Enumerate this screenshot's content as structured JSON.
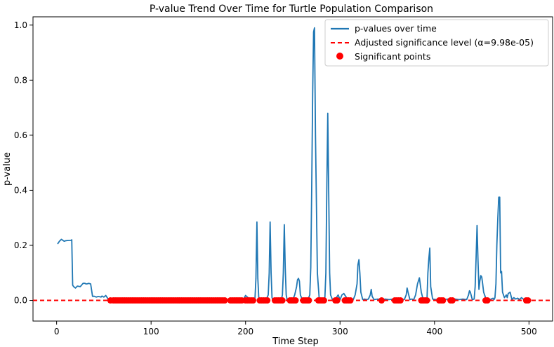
{
  "chart_data": {
    "type": "line",
    "title": "P-value Trend Over Time for Turtle Population Comparison",
    "xlabel": "Time Step",
    "ylabel": "p-value",
    "xlim": [
      -25,
      525
    ],
    "ylim": [
      -0.075,
      1.03
    ],
    "xticks": [
      0,
      100,
      200,
      300,
      400,
      500
    ],
    "yticks": [
      0.0,
      0.2,
      0.4,
      0.6,
      0.8,
      1.0
    ],
    "xtick_labels": [
      "0",
      "100",
      "200",
      "300",
      "400",
      "500"
    ],
    "ytick_labels": [
      "0.0",
      "0.2",
      "0.4",
      "0.6",
      "0.8",
      "1.0"
    ],
    "grid": false,
    "legend_position": "top-right",
    "colors": {
      "line": "#1f77b4",
      "threshold": "#ff0000",
      "points": "#ff0000"
    },
    "threshold": 9.98e-05,
    "series": [
      {
        "name": "p-values over time",
        "kind": "line",
        "x": [
          1,
          3,
          5,
          8,
          10,
          13,
          15,
          16,
          17,
          18,
          20,
          22,
          25,
          28,
          30,
          31,
          32,
          34,
          36,
          38,
          40,
          42,
          44,
          46,
          47,
          48,
          50,
          52,
          55,
          58,
          60,
          80,
          100,
          120,
          140,
          160,
          180,
          185,
          188,
          190,
          192,
          195,
          198,
          200,
          205,
          209,
          210,
          211,
          212,
          213,
          214,
          218,
          222,
          224,
          225,
          226,
          227,
          228,
          229,
          232,
          236,
          238,
          239,
          240,
          241,
          242,
          243,
          244,
          248,
          250,
          252,
          254,
          255,
          256,
          257,
          258,
          260,
          262,
          266,
          268,
          269,
          270,
          271,
          272,
          273,
          274,
          276,
          278,
          280,
          282,
          284,
          285,
          286,
          287,
          288,
          289,
          290,
          292,
          294,
          296,
          298,
          300,
          302,
          304,
          306,
          308,
          310,
          312,
          314,
          316,
          318,
          319,
          320,
          321,
          322,
          324,
          326,
          328,
          330,
          332,
          333,
          334,
          336,
          340,
          344,
          348,
          352,
          356,
          360,
          364,
          368,
          370,
          371,
          372,
          374,
          376,
          378,
          380,
          382,
          384,
          386,
          388,
          390,
          392,
          393,
          394,
          395,
          396,
          398,
          402,
          406,
          410,
          414,
          418,
          422,
          426,
          430,
          434,
          436,
          437,
          438,
          440,
          442,
          443,
          444,
          445,
          446,
          447,
          448,
          449,
          450,
          451,
          452,
          454,
          456,
          458,
          460,
          462,
          463,
          464,
          465,
          466,
          467,
          468,
          469,
          470,
          471,
          472,
          474,
          476,
          477,
          478,
          480,
          482,
          484,
          486,
          488,
          490,
          492,
          494,
          496,
          498
        ],
        "y": [
          0.205,
          0.215,
          0.222,
          0.215,
          0.217,
          0.218,
          0.218,
          0.22,
          0.055,
          0.05,
          0.045,
          0.052,
          0.05,
          0.062,
          0.062,
          0.06,
          0.06,
          0.062,
          0.06,
          0.015,
          0.015,
          0.012,
          0.014,
          0.013,
          0.012,
          0.016,
          0.012,
          0.018,
          0.003,
          0.002,
          0.001,
          0.001,
          0.001,
          0.001,
          0.001,
          0.001,
          0.001,
          0.003,
          0.003,
          0.005,
          0.003,
          0.008,
          0.005,
          0.018,
          0.003,
          0.002,
          0.01,
          0.08,
          0.285,
          0.08,
          0.005,
          0.003,
          0.005,
          0.02,
          0.1,
          0.285,
          0.1,
          0.01,
          0.003,
          0.008,
          0.003,
          0.005,
          0.02,
          0.1,
          0.275,
          0.12,
          0.02,
          0.003,
          0.005,
          0.003,
          0.02,
          0.05,
          0.075,
          0.08,
          0.07,
          0.02,
          0.003,
          0.005,
          0.003,
          0.02,
          0.12,
          0.4,
          0.75,
          0.975,
          0.99,
          0.6,
          0.1,
          0.003,
          0.005,
          0.003,
          0.01,
          0.1,
          0.4,
          0.68,
          0.4,
          0.1,
          0.02,
          0.003,
          0.005,
          0.01,
          0.02,
          0.003,
          0.02,
          0.025,
          0.015,
          0.005,
          0.003,
          0.005,
          0.003,
          0.02,
          0.06,
          0.13,
          0.148,
          0.1,
          0.03,
          0.003,
          0.005,
          0.003,
          0.005,
          0.02,
          0.04,
          0.015,
          0.003,
          0.005,
          0.003,
          0.005,
          0.003,
          0.005,
          0.003,
          0.005,
          0.003,
          0.02,
          0.045,
          0.03,
          0.003,
          0.005,
          0.003,
          0.02,
          0.06,
          0.082,
          0.03,
          0.003,
          0.005,
          0.003,
          0.1,
          0.15,
          0.19,
          0.05,
          0.005,
          0.003,
          0.005,
          0.003,
          0.005,
          0.003,
          0.005,
          0.003,
          0.005,
          0.003,
          0.02,
          0.035,
          0.03,
          0.003,
          0.005,
          0.05,
          0.15,
          0.272,
          0.15,
          0.04,
          0.07,
          0.09,
          0.085,
          0.06,
          0.03,
          0.01,
          0.005,
          0.003,
          0.005,
          0.008,
          0.003,
          0.01,
          0.06,
          0.2,
          0.3,
          0.375,
          0.375,
          0.1,
          0.105,
          0.03,
          0.01,
          0.02,
          0.01,
          0.025,
          0.03,
          0.003,
          0.01,
          0.005,
          0.008,
          0.003,
          0.01,
          0.005,
          0.002,
          0.003
        ]
      },
      {
        "name": "Adjusted significance level (α=9.98e-05)",
        "kind": "hline",
        "y": 9.98e-05
      },
      {
        "name": "Significant points",
        "kind": "scatter",
        "x": [
          57,
          60,
          62,
          64,
          66,
          68,
          70,
          72,
          74,
          76,
          78,
          80,
          82,
          84,
          86,
          88,
          90,
          92,
          94,
          96,
          98,
          100,
          102,
          104,
          106,
          108,
          110,
          112,
          114,
          116,
          118,
          120,
          122,
          124,
          126,
          128,
          130,
          132,
          134,
          136,
          138,
          140,
          142,
          144,
          146,
          148,
          150,
          152,
          154,
          156,
          158,
          160,
          162,
          164,
          166,
          168,
          170,
          172,
          174,
          176,
          178,
          184,
          186,
          188,
          190,
          192,
          194,
          196,
          200,
          202,
          204,
          206,
          208,
          215,
          217,
          219,
          221,
          223,
          231,
          233,
          235,
          237,
          239,
          247,
          249,
          251,
          253,
          261,
          263,
          265,
          267,
          277,
          279,
          281,
          283,
          295,
          297,
          305,
          307,
          309,
          311,
          344,
          358,
          360,
          362,
          364,
          386,
          388,
          390,
          392,
          405,
          407,
          409,
          417,
          419,
          454,
          456,
          497,
          499
        ],
        "y": [
          0,
          0,
          0,
          0,
          0,
          0,
          0,
          0,
          0,
          0,
          0,
          0,
          0,
          0,
          0,
          0,
          0,
          0,
          0,
          0,
          0,
          0,
          0,
          0,
          0,
          0,
          0,
          0,
          0,
          0,
          0,
          0,
          0,
          0,
          0,
          0,
          0,
          0,
          0,
          0,
          0,
          0,
          0,
          0,
          0,
          0,
          0,
          0,
          0,
          0,
          0,
          0,
          0,
          0,
          0,
          0,
          0,
          0,
          0,
          0,
          0,
          0,
          0,
          0,
          0,
          0,
          0,
          0,
          0,
          0,
          0,
          0,
          0,
          0,
          0,
          0,
          0,
          0,
          0,
          0,
          0,
          0,
          0,
          0,
          0,
          0,
          0,
          0,
          0,
          0,
          0,
          0,
          0,
          0,
          0,
          0,
          0,
          0,
          0,
          0,
          0,
          0,
          0,
          0,
          0,
          0,
          0,
          0,
          0,
          0,
          0,
          0,
          0,
          0,
          0,
          0,
          0,
          0,
          0
        ]
      }
    ]
  }
}
